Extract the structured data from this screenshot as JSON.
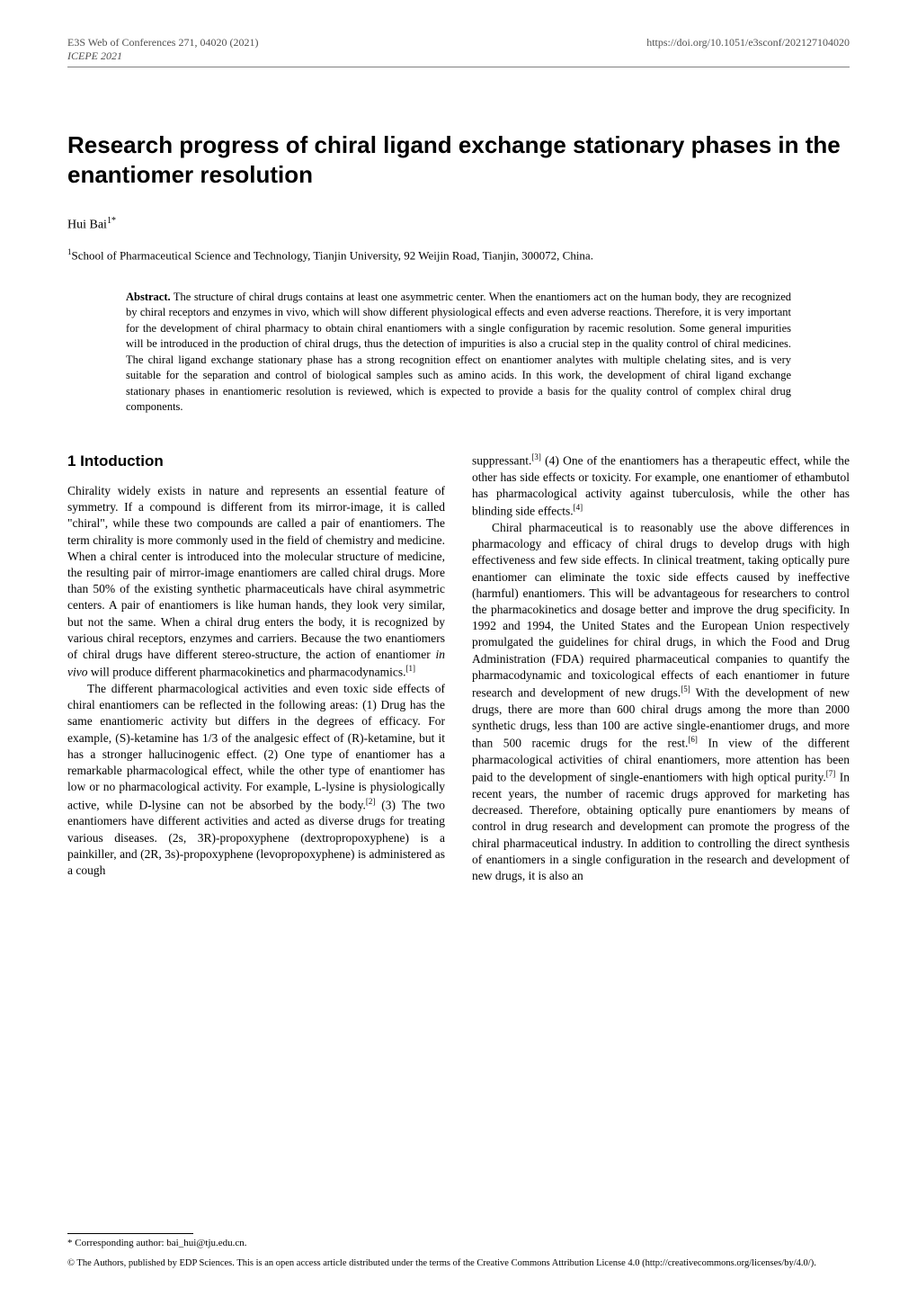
{
  "header": {
    "conference_line": "E3S Web of Conferences 271, 04020 (2021)",
    "conference_italic": "ICEPE 2021",
    "doi_url": "https://doi.org/10.1051/e3sconf/202127104020"
  },
  "title": "Research progress of chiral ligand exchange stationary phases in the enantiomer resolution",
  "author": {
    "name": "Hui Bai",
    "sup": "1*"
  },
  "affiliation": {
    "sup": "1",
    "text": "School of Pharmaceutical Science and Technology, Tianjin University, 92 Weijin Road, Tianjin, 300072, China."
  },
  "abstract": {
    "label": "Abstract.",
    "text": "The structure of chiral drugs contains at least one asymmetric center. When the enantiomers act on the human body, they are recognized by chiral receptors and enzymes in vivo, which will show different physiological effects and even adverse reactions. Therefore, it is very important for the development of chiral pharmacy to obtain chiral enantiomers with a single configuration by racemic resolution. Some general impurities will be introduced in the production of chiral drugs, thus the detection of impurities is also a crucial step in the quality control of chiral medicines. The chiral ligand exchange stationary phase has a strong recognition effect on enantiomer analytes with multiple chelating sites, and is very suitable for the separation and control of biological samples such as amino acids. In this work, the development of chiral ligand exchange stationary phases in enantiomeric resolution is reviewed, which is expected to provide a basis for the quality control of complex chiral drug components."
  },
  "section1": {
    "heading": "1 Intoduction",
    "p1_a": "Chirality widely exists in nature and represents an essential feature of symmetry. If a compound is different from its mirror-image, it is called \"chiral\", while these two compounds are called a pair of enantiomers. The term chirality is more commonly used in the field of chemistry and medicine. When a chiral center is introduced into the molecular structure of medicine, the resulting pair of mirror-image enantiomers are called chiral drugs. More than 50% of the existing synthetic pharmaceuticals have chiral asymmetric centers. A pair of enantiomers is like human hands, they look very similar, but not the same. When a chiral drug enters the body, it is recognized by various chiral receptors, enzymes and carriers. Because the two enantiomers of chiral drugs have different stereo-structure, the action of enantiomer ",
    "p1_italic": "in vivo",
    "p1_b": " will produce different pharmacokinetics and pharmacodynamics.",
    "p1_ref": "[1]",
    "p2_a": "The different pharmacological activities and even toxic side effects of chiral enantiomers can be reflected in the following areas: (1) Drug has the same enantiomeric activity but differs in the degrees of efficacy. For example, (S)-ketamine has 1/3 of the analgesic effect of (R)-ketamine, but it has a stronger hallucinogenic effect. (2) One type of enantiomer has a remarkable pharmacological effect, while the other type of enantiomer has low or no pharmacological activity. For example, L-lysine is physiologically active, while D-lysine can not be absorbed by the body.",
    "p2_ref1": "[2]",
    "p2_b": " (3) The two enantiomers have different activities and acted as diverse drugs for treating various diseases. (2s, 3R)-propoxyphene (dextropropoxyphene) is a painkiller, and (2R, 3s)-propoxyphene (levopropoxyphene) is administered as a cough ",
    "p2_c": "suppressant.",
    "p2_ref2": "[3]",
    "p2_d": " (4) One of the enantiomers has a therapeutic effect, while the other has side effects or toxicity. For example, one enantiomer of ethambutol has pharmacological activity against tuberculosis, while the other has blinding side effects.",
    "p2_ref3": "[4]",
    "p3_a": "Chiral pharmaceutical is to reasonably use the above differences in pharmacology and efficacy of chiral drugs to develop drugs with high effectiveness and few side effects. In clinical treatment, taking optically pure enantiomer can eliminate the toxic side effects caused by ineffective (harmful) enantiomers. This will be advantageous for researchers to control the pharmacokinetics and dosage better and improve the drug specificity. In 1992 and 1994, the United States and the European Union respectively promulgated the guidelines for chiral drugs, in which the Food and Drug Administration (FDA) required pharmaceutical companies to quantify the pharmacodynamic and toxicological effects of each enantiomer in future research and development of new drugs.",
    "p3_ref1": "[5]",
    "p3_b": " With the development of new drugs, there are more than 600 chiral drugs among the more than 2000 synthetic drugs, less than 100 are active single-enantiomer drugs, and more than 500 racemic drugs for the rest.",
    "p3_ref2": "[6]",
    "p3_c": " In view of the different pharmacological activities of chiral enantiomers, more attention has been paid to the development of single-enantiomers with high optical purity.",
    "p3_ref3": "[7]",
    "p3_d": " In recent years, the number of racemic drugs approved for marketing has decreased. Therefore, obtaining optically pure enantiomers by means of control in drug research and development can promote the progress of the chiral pharmaceutical industry. In addition to controlling the direct synthesis of enantiomers in a single configuration in the research and development of new drugs, it is also an"
  },
  "footnote": {
    "marker": "*",
    "text": " Corresponding author: bai_hui@tju.edu.cn."
  },
  "license": "© The Authors, published by EDP Sciences. This is an open access article distributed under the terms of the Creative Commons Attribution License 4.0 (http://creativecommons.org/licenses/by/4.0/)."
}
